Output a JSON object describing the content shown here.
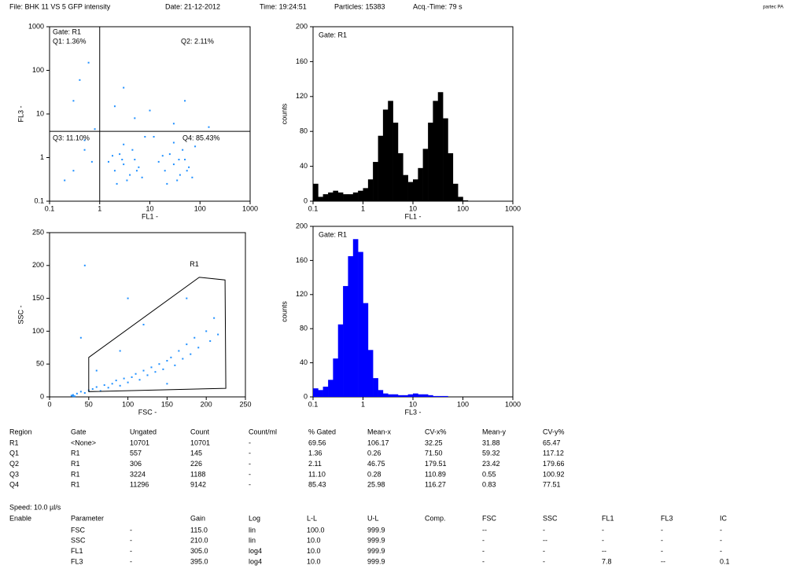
{
  "header": {
    "file": "File: BHK 11 VS 5 GFP intensity",
    "date": "Date: 21-12-2012",
    "time": "Time: 19:24:51",
    "particles": "Particles: 15383",
    "acq_time": "Acq.-Time: 79 s",
    "brand": "partec PA"
  },
  "chart_data": [
    {
      "type": "scatter",
      "xlabel": "FL1 -",
      "ylabel": "FL3 -",
      "xscale": "log",
      "yscale": "log",
      "xlim": [
        0.1,
        1000
      ],
      "ylim": [
        0.1,
        1000
      ],
      "xticks": [
        0.1,
        1,
        10,
        100,
        1000
      ],
      "yticks": [
        0.1,
        1,
        10,
        100,
        1000
      ],
      "color": "#1e8fff",
      "annotations": [
        "Gate: R1",
        "Q1: 1.36%",
        "Q2: 2.11%",
        "Q3: 11.10%",
        "Q4: 85.43%"
      ],
      "quadrant": {
        "x": 1,
        "y": 4
      },
      "x": [
        2,
        3,
        4,
        2.5,
        5,
        3.5,
        1.5,
        6,
        2.2,
        4.5,
        3,
        7,
        1.8,
        5.5,
        2.8,
        20,
        30,
        40,
        25,
        50,
        35,
        15,
        60,
        22,
        45,
        30,
        70,
        18,
        55,
        38,
        80,
        0.3,
        0.5,
        0.2,
        0.7,
        0.4,
        0.6,
        0.3,
        2,
        5,
        10,
        30,
        50,
        3,
        150,
        8,
        0.5,
        12,
        0.8
      ],
      "y": [
        0.5,
        0.7,
        0.4,
        1.2,
        0.9,
        0.3,
        0.8,
        0.6,
        0.25,
        1.5,
        2,
        0.35,
        1.1,
        0.5,
        0.9,
        0.5,
        0.7,
        0.4,
        1.2,
        0.9,
        0.3,
        0.8,
        0.6,
        0.25,
        1.5,
        2.2,
        0.35,
        1.1,
        0.5,
        0.9,
        1.8,
        0.5,
        1.5,
        0.3,
        0.8,
        60,
        150,
        20,
        15,
        8,
        12,
        6,
        20,
        40,
        5,
        3,
        2.5,
        3,
        4.5
      ]
    },
    {
      "type": "histogram",
      "xlabel": "FL1 -",
      "ylabel": "counts",
      "xscale": "log",
      "xlim": [
        0.1,
        1000
      ],
      "ylim": [
        0,
        200
      ],
      "xticks": [
        0.1,
        1,
        10,
        100,
        1000
      ],
      "yticks": [
        0,
        40,
        80,
        120,
        160,
        200
      ],
      "color": "#000000",
      "annotations": [
        "Gate: R1"
      ],
      "bins": [
        0.1,
        0.126,
        0.158,
        0.2,
        0.251,
        0.316,
        0.398,
        0.501,
        0.631,
        0.794,
        1,
        1.26,
        1.58,
        2,
        2.51,
        3.16,
        3.98,
        5.01,
        6.31,
        7.94,
        10,
        12.6,
        15.8,
        20,
        25.1,
        31.6,
        39.8,
        50.1,
        63.1,
        79.4,
        100,
        126,
        158,
        200,
        251,
        316,
        398,
        501,
        631,
        794,
        1000
      ],
      "counts": [
        20,
        5,
        8,
        10,
        12,
        10,
        8,
        8,
        10,
        12,
        15,
        25,
        45,
        75,
        105,
        115,
        90,
        55,
        30,
        22,
        25,
        38,
        60,
        90,
        115,
        125,
        95,
        55,
        20,
        5,
        1,
        0,
        0,
        0,
        0,
        0,
        0,
        0,
        0,
        0
      ]
    },
    {
      "type": "scatter",
      "xlabel": "FSC -",
      "ylabel": "SSC -",
      "xlim": [
        0,
        250
      ],
      "ylim": [
        0,
        250
      ],
      "xticks": [
        0,
        50,
        100,
        150,
        200,
        250
      ],
      "yticks": [
        0,
        50,
        100,
        150,
        200,
        250
      ],
      "color": "#1e8fff",
      "region": {
        "name": "R1",
        "x": [
          50,
          191,
          224,
          225,
          50
        ],
        "y": [
          60,
          182,
          178,
          13,
          8
        ]
      },
      "x": [
        30,
        35,
        40,
        45,
        50,
        55,
        60,
        65,
        70,
        75,
        80,
        85,
        90,
        95,
        100,
        105,
        110,
        115,
        120,
        125,
        130,
        135,
        140,
        145,
        150,
        155,
        160,
        165,
        170,
        175,
        180,
        185,
        190,
        200,
        205,
        210,
        60,
        90,
        120,
        45,
        100,
        150,
        30,
        28,
        32,
        215,
        175,
        40
      ],
      "y": [
        3,
        5,
        8,
        6,
        10,
        12,
        15,
        9,
        18,
        14,
        20,
        25,
        17,
        28,
        22,
        30,
        35,
        26,
        40,
        33,
        45,
        38,
        50,
        42,
        55,
        60,
        48,
        70,
        58,
        80,
        65,
        90,
        75,
        100,
        85,
        120,
        40,
        70,
        110,
        200,
        150,
        20,
        1,
        2,
        1,
        95,
        150,
        90
      ]
    },
    {
      "type": "histogram",
      "xlabel": "FL3 -",
      "ylabel": "counts",
      "xscale": "log",
      "xlim": [
        0.1,
        1000
      ],
      "ylim": [
        0,
        200
      ],
      "xticks": [
        0.1,
        1,
        10,
        100,
        1000
      ],
      "yticks": [
        0,
        40,
        80,
        120,
        160,
        200
      ],
      "color": "#0000ff",
      "annotations": [
        "Gate: R1"
      ],
      "bins": [
        0.1,
        0.126,
        0.158,
        0.2,
        0.251,
        0.316,
        0.398,
        0.501,
        0.631,
        0.794,
        1,
        1.26,
        1.58,
        2,
        2.51,
        3.16,
        3.98,
        5.01,
        6.31,
        7.94,
        10,
        12.6,
        15.8,
        20,
        25.1,
        31.6,
        39.8,
        50.1,
        63.1,
        79.4,
        100,
        126,
        158,
        200,
        251,
        316,
        398,
        501,
        631,
        794,
        1000
      ],
      "counts": [
        10,
        8,
        12,
        20,
        45,
        85,
        130,
        165,
        185,
        170,
        110,
        55,
        22,
        8,
        4,
        3,
        3,
        2,
        2,
        3,
        4,
        3,
        3,
        2,
        1,
        1,
        1,
        0,
        0,
        0,
        0,
        0,
        0,
        0,
        0,
        0,
        0,
        0,
        0,
        0
      ]
    }
  ],
  "region_table": {
    "headers": [
      "Region",
      "Gate",
      "Ungated",
      "Count",
      "Count/ml",
      "% Gated",
      "Mean-x",
      "CV-x%",
      "Mean-y",
      "CV-y%"
    ],
    "rows": [
      [
        "R1",
        "<None>",
        "10701",
        "10701",
        "-",
        "69.56",
        "106.17",
        "32.25",
        "31.88",
        "65.47"
      ],
      [
        "Q1",
        "R1",
        "557",
        "145",
        "-",
        "1.36",
        "0.26",
        "71.50",
        "59.32",
        "117.12"
      ],
      [
        "Q2",
        "R1",
        "306",
        "226",
        "-",
        "2.11",
        "46.75",
        "179.51",
        "23.42",
        "179.66"
      ],
      [
        "Q3",
        "R1",
        "3224",
        "1188",
        "-",
        "11.10",
        "0.28",
        "110.89",
        "0.55",
        "100.92"
      ],
      [
        "Q4",
        "R1",
        "11296",
        "9142",
        "-",
        "85.43",
        "25.98",
        "116.27",
        "0.83",
        "77.51"
      ]
    ]
  },
  "speed": "Speed: 10.0 µl/s",
  "parameter_table": {
    "headers": [
      "Enable",
      "Parameter",
      null,
      "Gain",
      "Log",
      "L-L",
      "U-L",
      "Comp.",
      "FSC",
      "SSC",
      "FL1",
      "FL3",
      "IC"
    ],
    "rows": [
      [
        null,
        "FSC",
        "-",
        "115.0",
        "lin",
        "100.0",
        "999.9",
        null,
        "--",
        "-",
        "-",
        "-",
        "-"
      ],
      [
        null,
        "SSC",
        "-",
        "210.0",
        "lin",
        "10.0",
        "999.9",
        null,
        "-",
        "--",
        "-",
        "-",
        "-"
      ],
      [
        null,
        "FL1",
        "-",
        "305.0",
        "log4",
        "10.0",
        "999.9",
        null,
        "-",
        "-",
        "--",
        "-",
        "-"
      ],
      [
        null,
        "FL3",
        "-",
        "395.0",
        "log4",
        "10.0",
        "999.9",
        null,
        "-",
        "-",
        "7.8",
        "--",
        "0.1"
      ]
    ]
  }
}
